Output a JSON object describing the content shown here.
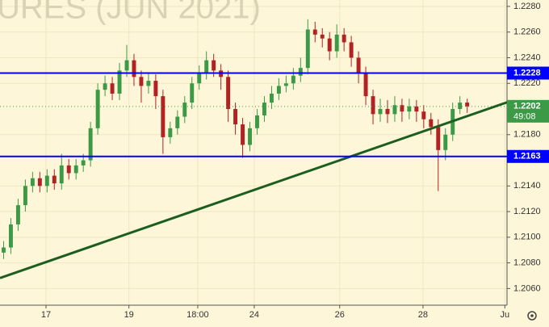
{
  "chart_data": {
    "type": "candlestick",
    "watermark": "URES (JUN 2021)",
    "candles": {
      "open": [
        1.2088,
        1.2092,
        1.211,
        1.2125,
        1.214,
        1.2146,
        1.214,
        1.2148,
        1.2142,
        1.2156,
        1.215,
        1.2156,
        1.216,
        1.2185,
        1.2215,
        1.222,
        1.2212,
        1.223,
        1.2238,
        1.2225,
        1.2218,
        1.2222,
        1.221,
        1.2178,
        1.2185,
        1.2194,
        1.2205,
        1.222,
        1.2228,
        1.2238,
        1.223,
        1.2225,
        1.22,
        1.2188,
        1.2172,
        1.2185,
        1.2195,
        1.2205,
        1.2212,
        1.2218,
        1.222,
        1.2226,
        1.2232,
        1.2262,
        1.2258,
        1.2255,
        1.2245,
        1.2258,
        1.2252,
        1.224,
        1.2228,
        1.221,
        1.2196,
        1.22,
        1.2196,
        1.2203,
        1.2198,
        1.2202,
        1.2198,
        1.2192,
        1.2186,
        1.2168,
        1.218,
        1.22,
        1.2205
      ],
      "high": [
        1.2097,
        1.2115,
        1.213,
        1.2145,
        1.2151,
        1.2151,
        1.2153,
        1.2153,
        1.2165,
        1.2161,
        1.2161,
        1.2165,
        1.219,
        1.222,
        1.2226,
        1.2225,
        1.2236,
        1.225,
        1.2243,
        1.223,
        1.2228,
        1.2227,
        1.2215,
        1.219,
        1.2199,
        1.221,
        1.2225,
        1.2234,
        1.2245,
        1.2243,
        1.2235,
        1.223,
        1.2205,
        1.2193,
        1.219,
        1.22,
        1.221,
        1.2218,
        1.2224,
        1.2226,
        1.2232,
        1.224,
        1.227,
        1.2268,
        1.2263,
        1.226,
        1.2266,
        1.2263,
        1.2257,
        1.2245,
        1.2233,
        1.2215,
        1.2208,
        1.2207,
        1.221,
        1.2208,
        1.2208,
        1.2207,
        1.2203,
        1.2197,
        1.2192,
        1.2185,
        1.2205,
        1.221,
        1.2208
      ],
      "low": [
        1.2083,
        1.2087,
        1.2105,
        1.212,
        1.2135,
        1.2135,
        1.2135,
        1.2137,
        1.2137,
        1.2145,
        1.2145,
        1.2151,
        1.2155,
        1.218,
        1.221,
        1.2207,
        1.2207,
        1.2225,
        1.2218,
        1.2205,
        1.2212,
        1.22,
        1.2165,
        1.2173,
        1.218,
        1.2189,
        1.22,
        1.2215,
        1.2223,
        1.2225,
        1.2215,
        1.219,
        1.218,
        1.2162,
        1.2167,
        1.218,
        1.219,
        1.22,
        1.2207,
        1.2213,
        1.2215,
        1.2221,
        1.2227,
        1.2252,
        1.2248,
        1.2238,
        1.224,
        1.2245,
        1.2233,
        1.222,
        1.2203,
        1.2188,
        1.219,
        1.2189,
        1.219,
        1.219,
        1.2192,
        1.219,
        1.2185,
        1.218,
        1.2136,
        1.216,
        1.2175,
        1.2196,
        1.2197
      ],
      "close": [
        1.2092,
        1.211,
        1.2125,
        1.214,
        1.2146,
        1.214,
        1.2148,
        1.2142,
        1.2156,
        1.215,
        1.2156,
        1.216,
        1.2185,
        1.2215,
        1.222,
        1.2212,
        1.223,
        1.2238,
        1.2225,
        1.2218,
        1.2222,
        1.221,
        1.2178,
        1.2185,
        1.2194,
        1.2205,
        1.222,
        1.2228,
        1.2238,
        1.223,
        1.2225,
        1.22,
        1.2188,
        1.2172,
        1.2185,
        1.2195,
        1.2205,
        1.2212,
        1.2218,
        1.222,
        1.2226,
        1.2232,
        1.2262,
        1.2258,
        1.2255,
        1.2245,
        1.2258,
        1.2252,
        1.224,
        1.2228,
        1.221,
        1.2196,
        1.22,
        1.2196,
        1.2203,
        1.2198,
        1.2202,
        1.2198,
        1.2192,
        1.2186,
        1.2168,
        1.218,
        1.22,
        1.2205,
        1.2202
      ]
    },
    "up_color": "#3c9a47",
    "down_color": "#b22222",
    "xlim": [
      -0.5,
      69.5
    ],
    "xticks": [
      {
        "value": 5.85,
        "label": "17"
      },
      {
        "value": 17.3,
        "label": "19"
      },
      {
        "value": 26.8,
        "label": "18:00"
      },
      {
        "value": 34.6,
        "label": "24"
      },
      {
        "value": 46.4,
        "label": "26"
      },
      {
        "value": 57.9,
        "label": "28"
      },
      {
        "value": 69.2,
        "label": "Ju"
      }
    ],
    "ylim": [
      1.2047,
      1.2285
    ],
    "yticks": [
      {
        "value": 1.228,
        "label": "1.2280"
      },
      {
        "value": 1.226,
        "label": "1.2260"
      },
      {
        "value": 1.224,
        "label": "1.2240"
      },
      {
        "value": 1.222,
        "label": "1.2220"
      },
      {
        "value": 1.218,
        "label": "1.2180"
      },
      {
        "value": 1.214,
        "label": "1.2140"
      },
      {
        "value": 1.212,
        "label": "1.2120"
      },
      {
        "value": 1.21,
        "label": "1.2100"
      },
      {
        "value": 1.208,
        "label": "1.2080"
      },
      {
        "value": 1.206,
        "label": "1.2060"
      }
    ],
    "grid": true,
    "levels": [
      {
        "value": 1.2228,
        "label": "1.2228"
      },
      {
        "value": 1.2163,
        "label": "1.2163"
      }
    ],
    "level_color": "#0000ff",
    "current_price": {
      "value": 1.2202,
      "label": "1.2202",
      "countdown": "49:08"
    },
    "current_color": "#3c9a47",
    "trendline": {
      "x": [
        -0.5,
        69.5
      ],
      "y": [
        1.20682,
        1.22052
      ],
      "color": "#1b5e20"
    }
  }
}
